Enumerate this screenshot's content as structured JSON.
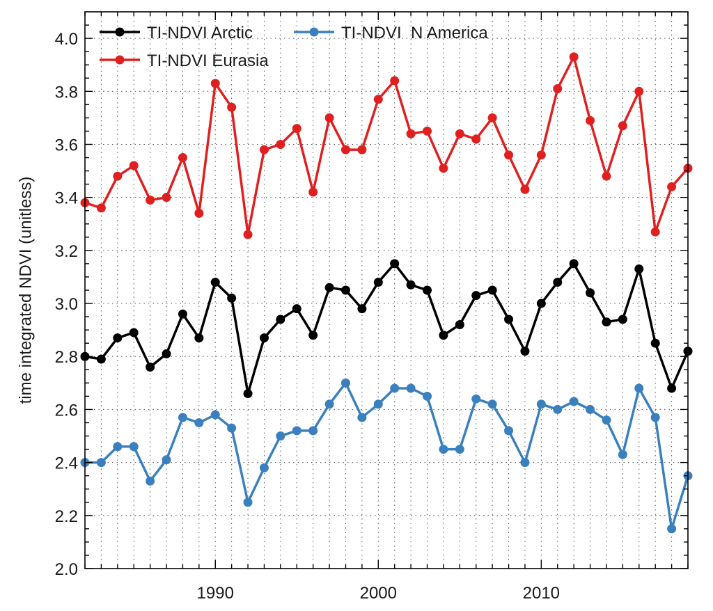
{
  "chart_data": {
    "type": "line",
    "title": "",
    "xlabel": "",
    "ylabel": "time integrated NDVI (unitless)",
    "xlim": [
      1982,
      2019
    ],
    "ylim": [
      2.0,
      4.1
    ],
    "xticks": [
      1990,
      2000,
      2010
    ],
    "yticks": [
      "2.0",
      "2.2",
      "2.4",
      "2.6",
      "2.8",
      "3.0",
      "3.2",
      "3.4",
      "3.6",
      "3.8",
      "4.0"
    ],
    "grid": "dotted",
    "legend_position": "top-left",
    "x": [
      1982,
      1983,
      1984,
      1985,
      1986,
      1987,
      1988,
      1989,
      1990,
      1991,
      1992,
      1993,
      1994,
      1995,
      1996,
      1997,
      1998,
      1999,
      2000,
      2001,
      2002,
      2003,
      2004,
      2005,
      2006,
      2007,
      2008,
      2009,
      2010,
      2011,
      2012,
      2013,
      2014,
      2015,
      2016,
      2017,
      2018,
      2019
    ],
    "series": [
      {
        "name": "TI-NDVI Arctic",
        "color": "#000000",
        "values": [
          2.8,
          2.79,
          2.87,
          2.89,
          2.76,
          2.81,
          2.96,
          2.87,
          3.08,
          3.02,
          2.66,
          2.87,
          2.94,
          2.98,
          2.88,
          3.06,
          3.05,
          2.98,
          3.08,
          3.15,
          3.07,
          3.05,
          2.88,
          2.92,
          3.03,
          3.05,
          2.94,
          2.82,
          3.0,
          3.08,
          3.15,
          3.04,
          2.93,
          2.94,
          3.13,
          2.85,
          2.68,
          2.82
        ]
      },
      {
        "name": "TI-NDVI  N America",
        "color": "#3a80be",
        "values": [
          2.4,
          2.4,
          2.46,
          2.46,
          2.33,
          2.41,
          2.57,
          2.55,
          2.58,
          2.53,
          2.25,
          2.38,
          2.5,
          2.52,
          2.52,
          2.62,
          2.7,
          2.57,
          2.62,
          2.68,
          2.68,
          2.65,
          2.45,
          2.45,
          2.64,
          2.62,
          2.52,
          2.4,
          2.62,
          2.6,
          2.63,
          2.6,
          2.56,
          2.43,
          2.68,
          2.57,
          2.15,
          2.35
        ]
      },
      {
        "name": "TI-NDVI Eurasia",
        "color": "#e02020",
        "values": [
          3.38,
          3.36,
          3.48,
          3.52,
          3.39,
          3.4,
          3.55,
          3.34,
          3.83,
          3.74,
          3.26,
          3.58,
          3.6,
          3.66,
          3.42,
          3.7,
          3.58,
          3.58,
          3.77,
          3.84,
          3.64,
          3.65,
          3.51,
          3.64,
          3.62,
          3.7,
          3.56,
          3.43,
          3.56,
          3.81,
          3.93,
          3.69,
          3.48,
          3.67,
          3.8,
          3.27,
          3.44,
          3.51
        ]
      }
    ]
  }
}
